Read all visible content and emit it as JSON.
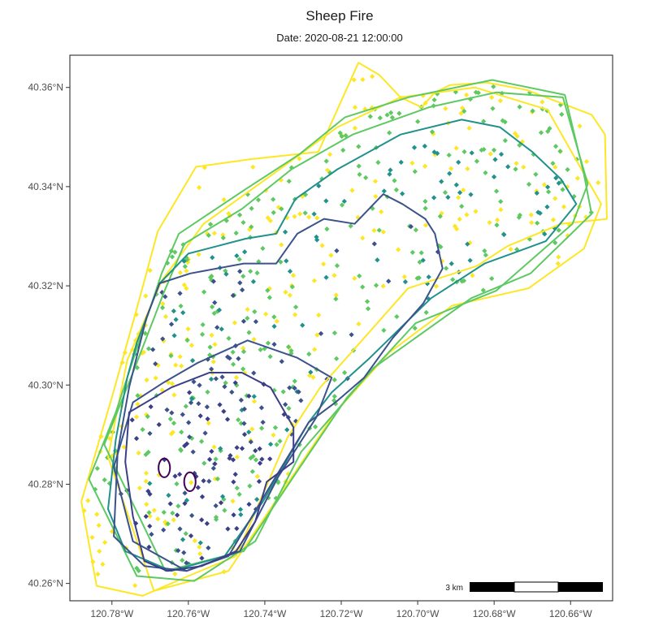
{
  "chart_data": {
    "type": "scatter",
    "title": "Sheep Fire",
    "subtitle": "Date: 2020-08-21 12:00:00",
    "xlim": [
      -120.791,
      -120.649
    ],
    "ylim": [
      40.2565,
      40.3665
    ],
    "x_ticks": [
      -120.78,
      -120.76,
      -120.74,
      -120.72,
      -120.7,
      -120.68,
      -120.66
    ],
    "x_tick_labels": [
      "120.78°W",
      "120.76°W",
      "120.74°W",
      "120.72°W",
      "120.70°W",
      "120.68°W",
      "120.66°W"
    ],
    "y_ticks": [
      40.26,
      40.28,
      40.3,
      40.32,
      40.34,
      40.36
    ],
    "y_tick_labels": [
      "40.26°N",
      "40.28°N",
      "40.30°N",
      "40.32°N",
      "40.34°N",
      "40.36°N"
    ],
    "grid": false,
    "scale_bar_label": "3 km",
    "palette": [
      "#440154",
      "#3b528b",
      "#21918c",
      "#5ec962",
      "#fde725"
    ],
    "perimeters": [
      {
        "color": "#fde725",
        "coords": [
          [
            -120.788,
            40.2765
          ],
          [
            -120.78,
            40.2975
          ],
          [
            -120.774,
            40.314
          ],
          [
            -120.768,
            40.331
          ],
          [
            -120.758,
            40.344
          ],
          [
            -120.744,
            40.3455
          ],
          [
            -120.726,
            40.347
          ],
          [
            -120.7155,
            40.365
          ],
          [
            -120.71,
            40.3625
          ],
          [
            -120.7045,
            40.358
          ],
          [
            -120.699,
            40.356
          ],
          [
            -120.6955,
            40.359
          ],
          [
            -120.6915,
            40.3605
          ],
          [
            -120.682,
            40.361
          ],
          [
            -120.6715,
            40.3595
          ],
          [
            -120.6545,
            40.3545
          ],
          [
            -120.651,
            40.3505
          ],
          [
            -120.6505,
            40.3335
          ],
          [
            -120.6625,
            40.3325
          ],
          [
            -120.6765,
            40.328
          ],
          [
            -120.6845,
            40.324
          ],
          [
            -120.7025,
            40.3195
          ],
          [
            -120.7255,
            40.2995
          ],
          [
            -120.734,
            40.2895
          ],
          [
            -120.7475,
            40.2655
          ],
          [
            -120.76,
            40.2615
          ],
          [
            -120.772,
            40.2575
          ],
          [
            -120.784,
            40.2595
          ],
          [
            -120.788,
            40.2765
          ]
        ]
      },
      {
        "color": "#fde725",
        "coords": [
          [
            -120.781,
            40.2855
          ],
          [
            -120.776,
            40.305
          ],
          [
            -120.767,
            40.321
          ],
          [
            -120.756,
            40.3325
          ],
          [
            -120.737,
            40.343
          ],
          [
            -120.721,
            40.352
          ],
          [
            -120.7045,
            40.358
          ],
          [
            -120.685,
            40.36
          ],
          [
            -120.666,
            40.3555
          ],
          [
            -120.652,
            40.3365
          ],
          [
            -120.6565,
            40.3275
          ],
          [
            -120.671,
            40.3195
          ],
          [
            -120.691,
            40.316
          ],
          [
            -120.7075,
            40.3065
          ],
          [
            -120.7215,
            40.2945
          ],
          [
            -120.7355,
            40.2785
          ],
          [
            -120.7495,
            40.2625
          ],
          [
            -120.769,
            40.2585
          ],
          [
            -120.781,
            40.2855
          ]
        ]
      },
      {
        "color": "#5ec962",
        "coords": [
          [
            -120.786,
            40.281
          ],
          [
            -120.779,
            40.2945
          ],
          [
            -120.773,
            40.3085
          ],
          [
            -120.767,
            40.3225
          ],
          [
            -120.7625,
            40.3305
          ],
          [
            -120.745,
            40.3395
          ],
          [
            -120.731,
            40.3465
          ],
          [
            -120.719,
            40.354
          ],
          [
            -120.7025,
            40.358
          ],
          [
            -120.6805,
            40.3615
          ],
          [
            -120.6615,
            40.3585
          ],
          [
            -120.6565,
            40.3425
          ],
          [
            -120.6545,
            40.3345
          ],
          [
            -120.6705,
            40.3225
          ],
          [
            -120.686,
            40.3175
          ],
          [
            -120.7115,
            40.3035
          ],
          [
            -120.7305,
            40.2865
          ],
          [
            -120.7425,
            40.2685
          ],
          [
            -120.7585,
            40.2605
          ],
          [
            -120.7735,
            40.2615
          ],
          [
            -120.786,
            40.281
          ]
        ]
      },
      {
        "color": "#5ec962",
        "coords": [
          [
            -120.782,
            40.288
          ],
          [
            -120.774,
            40.3035
          ],
          [
            -120.7665,
            40.3185
          ],
          [
            -120.761,
            40.3285
          ],
          [
            -120.746,
            40.3355
          ],
          [
            -120.733,
            40.3435
          ],
          [
            -120.717,
            40.3505
          ],
          [
            -120.697,
            40.356
          ],
          [
            -120.6795,
            40.359
          ],
          [
            -120.662,
            40.358
          ],
          [
            -120.6555,
            40.3405
          ],
          [
            -120.6595,
            40.3325
          ],
          [
            -120.6795,
            40.319
          ],
          [
            -120.7005,
            40.3125
          ],
          [
            -120.7185,
            40.2975
          ],
          [
            -120.7325,
            40.2815
          ],
          [
            -120.7455,
            40.2665
          ],
          [
            -120.766,
            40.2625
          ],
          [
            -120.782,
            40.288
          ]
        ]
      },
      {
        "color": "#21918c",
        "coords": [
          [
            -120.781,
            40.275
          ],
          [
            -120.779,
            40.289
          ],
          [
            -120.776,
            40.3015
          ],
          [
            -120.7735,
            40.3085
          ],
          [
            -120.7675,
            40.3205
          ],
          [
            -120.76,
            40.3265
          ],
          [
            -120.745,
            40.3295
          ],
          [
            -120.737,
            40.3305
          ],
          [
            -120.732,
            40.3375
          ],
          [
            -120.721,
            40.3435
          ],
          [
            -120.7045,
            40.3505
          ],
          [
            -120.6885,
            40.3535
          ],
          [
            -120.6785,
            40.352
          ],
          [
            -120.67,
            40.347
          ],
          [
            -120.6625,
            40.3415
          ],
          [
            -120.6585,
            40.3365
          ],
          [
            -120.6665,
            40.329
          ],
          [
            -120.6825,
            40.3245
          ],
          [
            -120.6965,
            40.3175
          ],
          [
            -120.7125,
            40.3055
          ],
          [
            -120.7225,
            40.2985
          ],
          [
            -120.7285,
            40.2925
          ],
          [
            -120.7405,
            40.2765
          ],
          [
            -120.7505,
            40.2655
          ],
          [
            -120.7645,
            40.2625
          ],
          [
            -120.7765,
            40.2665
          ],
          [
            -120.781,
            40.275
          ]
        ]
      },
      {
        "color": "#3b528b",
        "coords": [
          [
            -120.7795,
            40.2695
          ],
          [
            -120.7785,
            40.2865
          ],
          [
            -120.7755,
            40.2995
          ],
          [
            -120.771,
            40.3135
          ],
          [
            -120.7675,
            40.3205
          ],
          [
            -120.7595,
            40.3225
          ],
          [
            -120.7455,
            40.3245
          ],
          [
            -120.737,
            40.3245
          ],
          [
            -120.7315,
            40.3305
          ],
          [
            -120.7245,
            40.3335
          ],
          [
            -120.7165,
            40.3325
          ],
          [
            -120.709,
            40.3385
          ],
          [
            -120.704,
            40.3365
          ],
          [
            -120.698,
            40.3335
          ],
          [
            -120.6955,
            40.3305
          ],
          [
            -120.6935,
            40.3235
          ],
          [
            -120.6985,
            40.3165
          ],
          [
            -120.7065,
            40.3095
          ],
          [
            -120.714,
            40.3015
          ],
          [
            -120.7215,
            40.2965
          ],
          [
            -120.7285,
            40.2925
          ],
          [
            -120.7395,
            40.2785
          ],
          [
            -120.7495,
            40.2655
          ],
          [
            -120.7605,
            40.2625
          ],
          [
            -120.7715,
            40.2635
          ],
          [
            -120.7795,
            40.2695
          ]
        ]
      },
      {
        "color": "#3b528b",
        "coords": [
          [
            -120.7745,
            40.2965
          ],
          [
            -120.7665,
            40.3005
          ],
          [
            -120.7575,
            40.3045
          ],
          [
            -120.7445,
            40.309
          ],
          [
            -120.7315,
            40.3055
          ],
          [
            -120.7225,
            40.3015
          ],
          [
            -120.7265,
            40.2935
          ],
          [
            -120.7365,
            40.2815
          ],
          [
            -120.7465,
            40.2665
          ],
          [
            -120.7605,
            40.2625
          ],
          [
            -120.7745,
            40.2685
          ],
          [
            -120.7795,
            40.2835
          ],
          [
            -120.7745,
            40.2965
          ]
        ]
      },
      {
        "color": "#3b3f87",
        "coords": [
          [
            -120.7755,
            40.2945
          ],
          [
            -120.7645,
            40.2995
          ],
          [
            -120.7545,
            40.3025
          ],
          [
            -120.746,
            40.3025
          ],
          [
            -120.7385,
            40.2995
          ],
          [
            -120.7325,
            40.2915
          ],
          [
            -120.7325,
            40.2845
          ],
          [
            -120.7395,
            40.2805
          ],
          [
            -120.7425,
            40.2725
          ],
          [
            -120.7475,
            40.2665
          ],
          [
            -120.7565,
            40.2635
          ],
          [
            -120.7655,
            40.2625
          ],
          [
            -120.7715,
            40.2645
          ],
          [
            -120.7745,
            40.2735
          ],
          [
            -120.7765,
            40.2845
          ],
          [
            -120.7755,
            40.2945
          ]
        ]
      },
      {
        "color": "#440154",
        "ellipse": true,
        "cx": -120.7663,
        "cy": 40.2833,
        "rx": 0.0015,
        "ry": 0.0019
      },
      {
        "color": "#440154",
        "ellipse": true,
        "cx": -120.7596,
        "cy": 40.2805,
        "rx": 0.0015,
        "ry": 0.0019
      }
    ]
  }
}
